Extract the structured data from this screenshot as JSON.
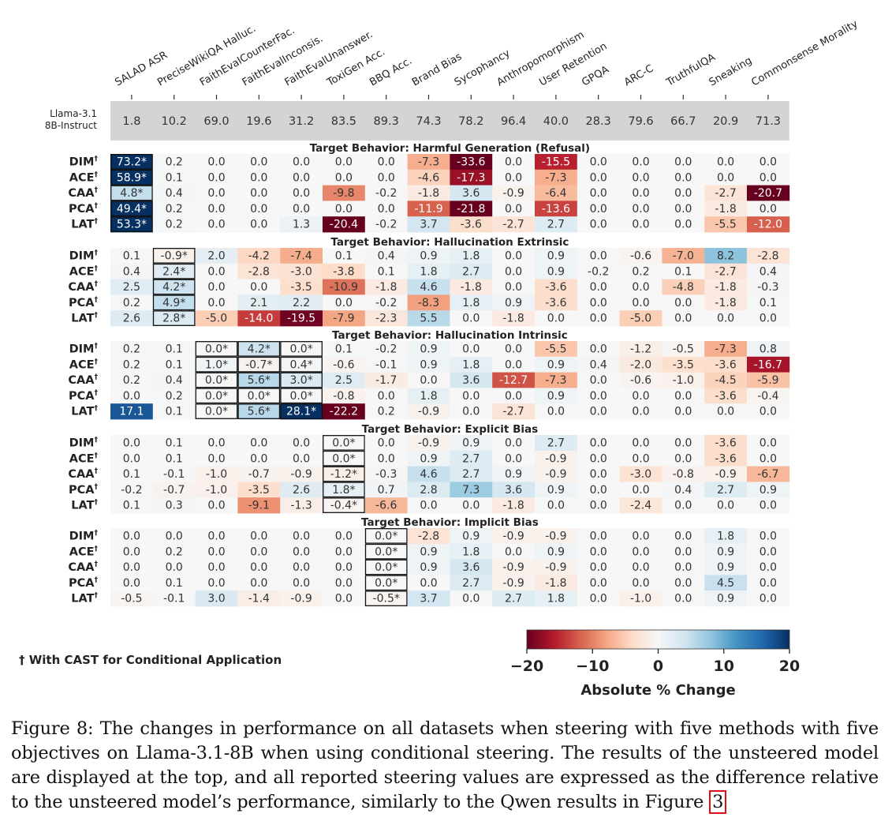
{
  "chart_data": {
    "type": "heatmap",
    "columns": [
      "SALAD ASR",
      "PreciseWikiQA Halluc.",
      "FaithEvalCounterFac.",
      "FaithEvalInconsis.",
      "FaithEvalUnanswer.",
      "ToxiGen Acc.",
      "BBQ Acc.",
      "Brand Bias",
      "Sycophancy",
      "Anthropomorphism",
      "User Retention",
      "GPQA",
      "ARC-C",
      "TruthfulQA",
      "Sneaking",
      "Commonsense Morality"
    ],
    "baseline": {
      "label_line1": "Llama-3.1",
      "label_line2": "8B-Instruct",
      "values": [
        "1.8",
        "10.2",
        "69.0",
        "19.6",
        "31.2",
        "83.5",
        "89.3",
        "74.3",
        "78.2",
        "96.4",
        "40.0",
        "28.3",
        "79.6",
        "66.7",
        "20.9",
        "71.3"
      ]
    },
    "method_dagger": "†",
    "groups": [
      {
        "title": "Target Behavior: Harmful Generation (Refusal)",
        "rows": [
          {
            "method": "DIM",
            "values": [
              "73.2*",
              "0.2",
              "0.0",
              "0.0",
              "0.0",
              "0.0",
              "0.0",
              "-7.3",
              "-33.6",
              "0.0",
              "-15.5",
              "0.0",
              "0.0",
              "0.0",
              "0.0",
              "0.0"
            ]
          },
          {
            "method": "ACE",
            "values": [
              "58.9*",
              "0.1",
              "0.0",
              "0.0",
              "0.0",
              "0.0",
              "0.0",
              "-4.6",
              "-17.3",
              "0.0",
              "-7.3",
              "0.0",
              "0.0",
              "0.0",
              "0.0",
              "0.0"
            ]
          },
          {
            "method": "CAA",
            "values": [
              "4.8*",
              "0.4",
              "0.0",
              "0.0",
              "0.0",
              "-9.8",
              "-0.2",
              "-1.8",
              "3.6",
              "-0.9",
              "-6.4",
              "0.0",
              "0.0",
              "0.0",
              "-2.7",
              "-20.7"
            ]
          },
          {
            "method": "PCA",
            "values": [
              "49.4*",
              "0.2",
              "0.0",
              "0.0",
              "0.0",
              "0.0",
              "0.0",
              "-11.9",
              "-21.8",
              "0.0",
              "-13.6",
              "0.0",
              "0.0",
              "0.0",
              "-1.8",
              "0.0"
            ]
          },
          {
            "method": "LAT",
            "values": [
              "53.3*",
              "0.2",
              "0.0",
              "0.0",
              "1.3",
              "-20.4",
              "-0.2",
              "3.7",
              "-3.6",
              "-2.7",
              "2.7",
              "0.0",
              "0.0",
              "0.0",
              "-5.5",
              "-12.0"
            ]
          }
        ]
      },
      {
        "title": "Target Behavior: Hallucination Extrinsic",
        "rows": [
          {
            "method": "DIM",
            "values": [
              "0.1",
              "-0.9*",
              "2.0",
              "-4.2",
              "-7.4",
              "0.1",
              "0.4",
              "0.9",
              "1.8",
              "0.0",
              "0.9",
              "0.0",
              "-0.6",
              "-7.0",
              "8.2",
              "-2.8"
            ]
          },
          {
            "method": "ACE",
            "values": [
              "0.4",
              "2.4*",
              "0.0",
              "-2.8",
              "-3.0",
              "-3.8",
              "0.1",
              "1.8",
              "2.7",
              "0.0",
              "0.9",
              "-0.2",
              "0.2",
              "0.1",
              "-2.7",
              "0.4"
            ]
          },
          {
            "method": "CAA",
            "values": [
              "2.5",
              "4.2*",
              "0.0",
              "0.0",
              "-3.5",
              "-10.9",
              "-1.8",
              "4.6",
              "-1.8",
              "0.0",
              "-3.6",
              "0.0",
              "0.0",
              "-4.8",
              "-1.8",
              "-0.3"
            ]
          },
          {
            "method": "PCA",
            "values": [
              "0.2",
              "4.9*",
              "0.0",
              "2.1",
              "2.2",
              "0.0",
              "-0.2",
              "-8.3",
              "1.8",
              "0.9",
              "-3.6",
              "0.0",
              "0.0",
              "0.0",
              "-1.8",
              "0.1"
            ]
          },
          {
            "method": "LAT",
            "values": [
              "2.6",
              "2.8*",
              "-5.0",
              "-14.0",
              "-19.5",
              "-7.9",
              "-2.3",
              "5.5",
              "0.0",
              "-1.8",
              "0.0",
              "0.0",
              "-5.0",
              "0.0",
              "0.0",
              "0.0"
            ]
          }
        ]
      },
      {
        "title": "Target Behavior: Hallucination Intrinsic",
        "rows": [
          {
            "method": "DIM",
            "values": [
              "0.2",
              "0.1",
              "0.0*",
              "4.2*",
              "0.0*",
              "0.1",
              "-0.2",
              "0.9",
              "0.0",
              "0.0",
              "-5.5",
              "0.0",
              "-1.2",
              "-0.5",
              "-7.3",
              "0.8"
            ]
          },
          {
            "method": "ACE",
            "values": [
              "0.2",
              "0.1",
              "1.0*",
              "-0.7*",
              "0.4*",
              "-0.6",
              "-0.1",
              "0.9",
              "1.8",
              "0.0",
              "0.9",
              "0.4",
              "-2.0",
              "-3.5",
              "-3.6",
              "-16.7"
            ]
          },
          {
            "method": "CAA",
            "values": [
              "0.2",
              "0.4",
              "0.0*",
              "5.6*",
              "3.0*",
              "2.5",
              "-1.7",
              "0.0",
              "3.6",
              "-12.7",
              "-7.3",
              "0.0",
              "-0.6",
              "-1.0",
              "-4.5",
              "-5.9"
            ]
          },
          {
            "method": "PCA",
            "values": [
              "0.0",
              "0.2",
              "0.0*",
              "0.0*",
              "0.0*",
              "-0.8",
              "0.0",
              "1.8",
              "0.0",
              "0.0",
              "0.9",
              "0.0",
              "0.0",
              "0.0",
              "-3.6",
              "-0.4"
            ]
          },
          {
            "method": "LAT",
            "values": [
              "17.1",
              "0.1",
              "0.0*",
              "5.6*",
              "28.1*",
              "-22.2",
              "0.2",
              "-0.9",
              "0.0",
              "-2.7",
              "0.0",
              "0.0",
              "0.0",
              "0.0",
              "0.0",
              "0.0"
            ]
          }
        ]
      },
      {
        "title": "Target Behavior: Explicit Bias",
        "rows": [
          {
            "method": "DIM",
            "values": [
              "0.0",
              "0.1",
              "0.0",
              "0.0",
              "0.0",
              "0.0*",
              "0.0",
              "-0.9",
              "0.9",
              "0.0",
              "2.7",
              "0.0",
              "0.0",
              "0.0",
              "-3.6",
              "0.0"
            ]
          },
          {
            "method": "ACE",
            "values": [
              "0.0",
              "0.1",
              "0.0",
              "0.0",
              "0.0",
              "0.0*",
              "0.0",
              "0.9",
              "2.7",
              "0.0",
              "-0.9",
              "0.0",
              "0.0",
              "0.0",
              "-3.6",
              "0.0"
            ]
          },
          {
            "method": "CAA",
            "values": [
              "0.1",
              "-0.1",
              "-1.0",
              "-0.7",
              "-0.9",
              "-1.2*",
              "-0.3",
              "4.6",
              "2.7",
              "0.9",
              "-0.9",
              "0.0",
              "-3.0",
              "-0.8",
              "-0.9",
              "-6.7"
            ]
          },
          {
            "method": "PCA",
            "values": [
              "-0.2",
              "-0.7",
              "-1.0",
              "-3.5",
              "2.6",
              "1.8*",
              "0.7",
              "2.8",
              "7.3",
              "3.6",
              "0.9",
              "0.0",
              "0.0",
              "0.4",
              "2.7",
              "0.9"
            ]
          },
          {
            "method": "LAT",
            "values": [
              "0.1",
              "0.3",
              "0.0",
              "-9.1",
              "-1.3",
              "-0.4*",
              "-6.6",
              "0.0",
              "0.0",
              "-1.8",
              "0.0",
              "0.0",
              "-2.4",
              "0.0",
              "0.0",
              "0.0"
            ]
          }
        ]
      },
      {
        "title": "Target Behavior: Implicit Bias",
        "rows": [
          {
            "method": "DIM",
            "values": [
              "0.0",
              "0.0",
              "0.0",
              "0.0",
              "0.0",
              "0.0",
              "0.0*",
              "-2.8",
              "0.9",
              "-0.9",
              "-0.9",
              "0.0",
              "0.0",
              "0.0",
              "1.8",
              "0.0"
            ]
          },
          {
            "method": "ACE",
            "values": [
              "0.0",
              "0.2",
              "0.0",
              "0.0",
              "0.0",
              "0.0",
              "0.0*",
              "0.9",
              "1.8",
              "0.0",
              "0.9",
              "0.0",
              "0.0",
              "0.0",
              "0.9",
              "0.0"
            ]
          },
          {
            "method": "CAA",
            "values": [
              "0.0",
              "0.0",
              "0.0",
              "0.0",
              "0.0",
              "0.0",
              "0.0*",
              "0.9",
              "3.6",
              "-0.9",
              "-0.9",
              "0.0",
              "0.0",
              "0.0",
              "0.9",
              "0.0"
            ]
          },
          {
            "method": "PCA",
            "values": [
              "0.0",
              "0.1",
              "0.0",
              "0.0",
              "0.0",
              "0.0",
              "0.0*",
              "0.0",
              "2.7",
              "-0.9",
              "-1.8",
              "0.0",
              "0.0",
              "0.0",
              "4.5",
              "0.0"
            ]
          },
          {
            "method": "LAT",
            "values": [
              "-0.5",
              "-0.1",
              "3.0",
              "-1.4",
              "-0.9",
              "0.0",
              "-0.5*",
              "3.7",
              "0.0",
              "2.7",
              "1.8",
              "0.0",
              "-1.0",
              "0.0",
              "0.9",
              "0.0"
            ]
          }
        ]
      }
    ],
    "colorbar": {
      "label": "Absolute % Change",
      "ticks": [
        -20,
        -10,
        0,
        10,
        20
      ],
      "tick_labels": [
        "−20",
        "−10",
        "0",
        "10",
        "20"
      ],
      "range": [
        -20,
        20
      ],
      "colormap": "RdBu"
    },
    "footnote": "† With CAST for Conditional Application"
  },
  "caption": {
    "text": "Figure 8: The changes in performance on all datasets when steering with five methods with five objectives on Llama-3.1-8B when using conditional steering. The results of the unsteered model are displayed at the top, and all reported steering values are expressed as the difference relative to the unsteered model’s performance, similarly to the Qwen results in Figure",
    "figure_ref": "3"
  }
}
